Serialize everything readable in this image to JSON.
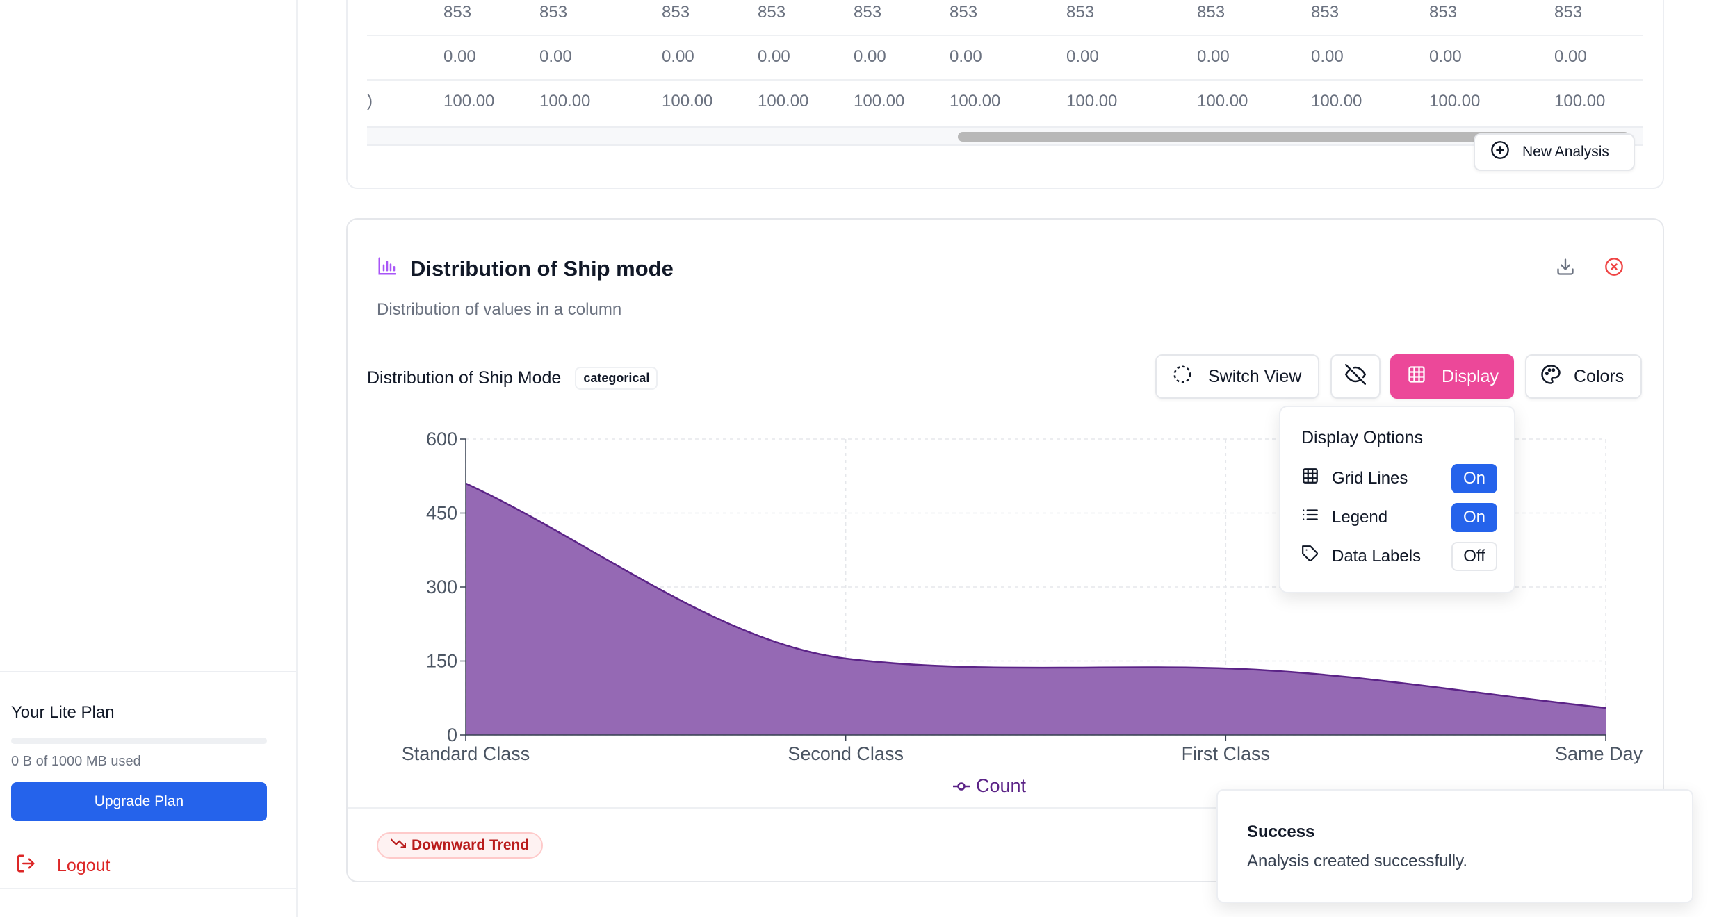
{
  "sidebar": {
    "plan_title": "Your Lite Plan",
    "plan_used": "0 B of 1000 MB used",
    "upgrade_label": "Upgrade Plan",
    "logout_label": "Logout"
  },
  "table": {
    "rows": [
      {
        "lead": "",
        "cells": [
          "853",
          "853",
          "853",
          "853",
          "853",
          "853",
          "853",
          "853",
          "853",
          "853",
          "853"
        ]
      },
      {
        "lead": "",
        "cells": [
          "0.00",
          "0.00",
          "0.00",
          "0.00",
          "0.00",
          "0.00",
          "0.00",
          "0.00",
          "0.00",
          "0.00",
          "0.00"
        ]
      },
      {
        "lead": ")",
        "cells": [
          "100.00",
          "100.00",
          "100.00",
          "100.00",
          "100.00",
          "100.00",
          "100.00",
          "100.00",
          "100.00",
          "100.00",
          "100.00"
        ]
      }
    ],
    "new_analysis_label": "New Analysis"
  },
  "card": {
    "title": "Distribution of Ship mode",
    "subtitle": "Distribution of values in a column",
    "chart_title": "Distribution of Ship Mode",
    "badge": "categorical",
    "trend": "Downward Trend"
  },
  "toolbar": {
    "switch_view": "Switch View",
    "display": "Display",
    "colors": "Colors"
  },
  "display_options": {
    "title": "Display Options",
    "items": [
      {
        "label": "Grid Lines",
        "state": "On"
      },
      {
        "label": "Legend",
        "state": "On"
      },
      {
        "label": "Data Labels",
        "state": "Off"
      }
    ]
  },
  "toast": {
    "title": "Success",
    "message": "Analysis created successfully."
  },
  "colors": {
    "accent_purple": "#9569b4",
    "line_purple": "#5b2387",
    "display_pink": "#ec4899",
    "primary_blue": "#2563eb",
    "danger_red": "#dc2626"
  },
  "chart_data": {
    "type": "area",
    "categories": [
      "Standard Class",
      "Second Class",
      "First Class",
      "Same Day"
    ],
    "series": [
      {
        "name": "Count",
        "values": [
          510,
          155,
          135,
          55
        ]
      }
    ],
    "ylim": [
      0,
      600
    ],
    "yticks": [
      0,
      150,
      300,
      450,
      600
    ],
    "grid": true,
    "legend": "bottom",
    "smooth": true
  }
}
